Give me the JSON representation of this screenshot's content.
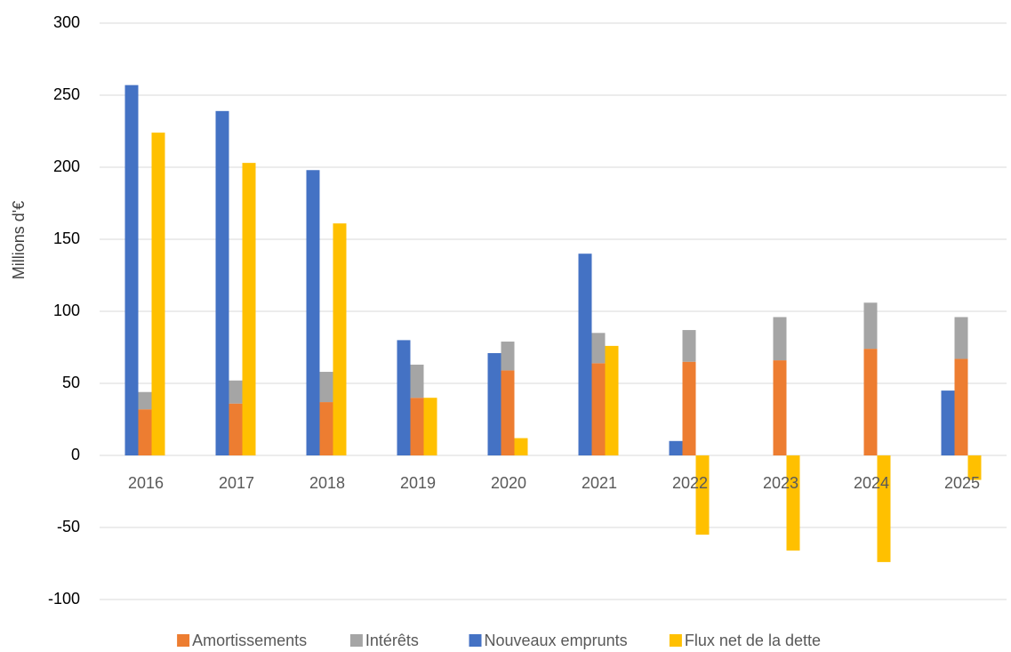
{
  "chart_data": {
    "type": "bar",
    "y_label": "Millions d'€",
    "categories": [
      "2016",
      "2017",
      "2018",
      "2019",
      "2020",
      "2021",
      "2022",
      "2023",
      "2024",
      "2025"
    ],
    "series": [
      {
        "name": "Amortissements",
        "color": "#ed7d31",
        "stack": "dette",
        "values": [
          32,
          36,
          37,
          40,
          59,
          64,
          65,
          66,
          74,
          67
        ]
      },
      {
        "name": "Intérêts",
        "color": "#a5a5a5",
        "stack": "dette",
        "values": [
          12,
          16,
          21,
          23,
          20,
          21,
          22,
          30,
          32,
          29
        ]
      },
      {
        "name": "Nouveaux emprunts",
        "color": "#4472c4",
        "values": [
          257,
          239,
          198,
          80,
          71,
          140,
          10,
          0,
          0,
          45
        ]
      },
      {
        "name": "Flux net de la dette",
        "color": "#ffc000",
        "values": [
          224,
          203,
          161,
          40,
          12,
          76,
          -55,
          -66,
          -74,
          -17
        ]
      }
    ],
    "ylim": [
      -100,
      300
    ],
    "yticks": [
      -100,
      -50,
      0,
      50,
      100,
      150,
      200,
      250,
      300
    ],
    "grid": true,
    "legend": "bottom"
  }
}
